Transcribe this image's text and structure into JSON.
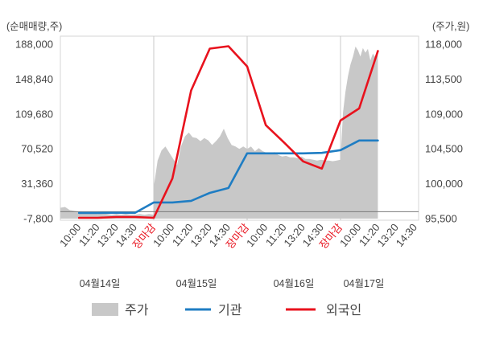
{
  "chart_data": {
    "type": "line",
    "left_axis": {
      "label": "(순매매량,주)",
      "ticks": [
        "188,000",
        "148,840",
        "109,680",
        "70,520",
        "31,360",
        "-7,800"
      ],
      "min": -7800,
      "max": 188000
    },
    "right_axis": {
      "label": "(주가,원)",
      "ticks": [
        "118,000",
        "113,500",
        "109,000",
        "104,500",
        "100,000",
        "95,500"
      ],
      "min": 95500,
      "max": 118000
    },
    "days": [
      {
        "date": "04월14일",
        "ticks": [
          {
            "label": "10:00"
          },
          {
            "label": "11:20"
          },
          {
            "label": "13:20"
          },
          {
            "label": "14:30"
          },
          {
            "label": "장마감",
            "color": "#e8121d"
          }
        ],
        "price": [
          96900,
          97000,
          96600,
          96500,
          96400,
          96300,
          96200,
          96200,
          96100,
          96200,
          96100,
          96000,
          96100,
          96000,
          96100,
          96000,
          96000,
          96100,
          96000,
          96100,
          96000
        ]
      },
      {
        "date": "04월15일",
        "ticks": [
          {
            "label": "10:00"
          },
          {
            "label": "11:20"
          },
          {
            "label": "13:20"
          },
          {
            "label": "14:30"
          },
          {
            "label": "장마감",
            "color": "#e8121d"
          }
        ],
        "price": [
          99600,
          103000,
          104300,
          104800,
          104000,
          103200,
          102400,
          104800,
          106100,
          106600,
          106000,
          105900,
          105500,
          105900,
          105600,
          105000,
          105500,
          106100,
          107100,
          105900,
          105000,
          104800,
          104500,
          104800,
          104500
        ]
      },
      {
        "date": "04월16일",
        "ticks": [
          {
            "label": "10:00"
          },
          {
            "label": "11:20"
          },
          {
            "label": "13:20"
          },
          {
            "label": "14:30"
          },
          {
            "label": "장마감",
            "color": "#e8121d"
          }
        ],
        "price": [
          104500,
          104800,
          104200,
          104600,
          104200,
          104000,
          103800,
          104100,
          103700,
          103500,
          103600,
          103400,
          103400,
          103300,
          103500,
          103200,
          103200,
          103100,
          103000,
          103100,
          103000,
          103000,
          102900,
          103000,
          103100
        ]
      },
      {
        "date": "04월17일",
        "ticks": [
          {
            "label": "10:00"
          },
          {
            "label": "11:20"
          },
          {
            "label": "13:20"
          },
          {
            "label": "14:30"
          }
        ],
        "price": [
          103100,
          109200,
          111900,
          113900,
          115400,
          116400,
          117700,
          117200,
          116400,
          117500,
          116900,
          117400,
          115900,
          116800,
          116300,
          117300
        ]
      }
    ],
    "series": [
      {
        "name": "기관",
        "color": "#1f7dc3",
        "axis": "left",
        "values": [
          -1400,
          -1400,
          -1200,
          -1300,
          10300,
          10300,
          12100,
          21100,
          26600,
          65500,
          65500,
          65500,
          65500,
          66000,
          69100,
          79900,
          79900,
          null,
          null
        ]
      },
      {
        "name": "외국인",
        "color": "#e8121d",
        "axis": "left",
        "values": [
          -6900,
          -6900,
          -6000,
          -6000,
          -6900,
          37400,
          136000,
          183000,
          185700,
          163100,
          97100,
          77200,
          56400,
          48300,
          102400,
          115900,
          180300,
          null,
          null
        ]
      }
    ],
    "price_series": {
      "name": "주가",
      "color": "#c8c8c8",
      "axis": "right"
    },
    "grid": false,
    "legend_position": "bottom"
  }
}
